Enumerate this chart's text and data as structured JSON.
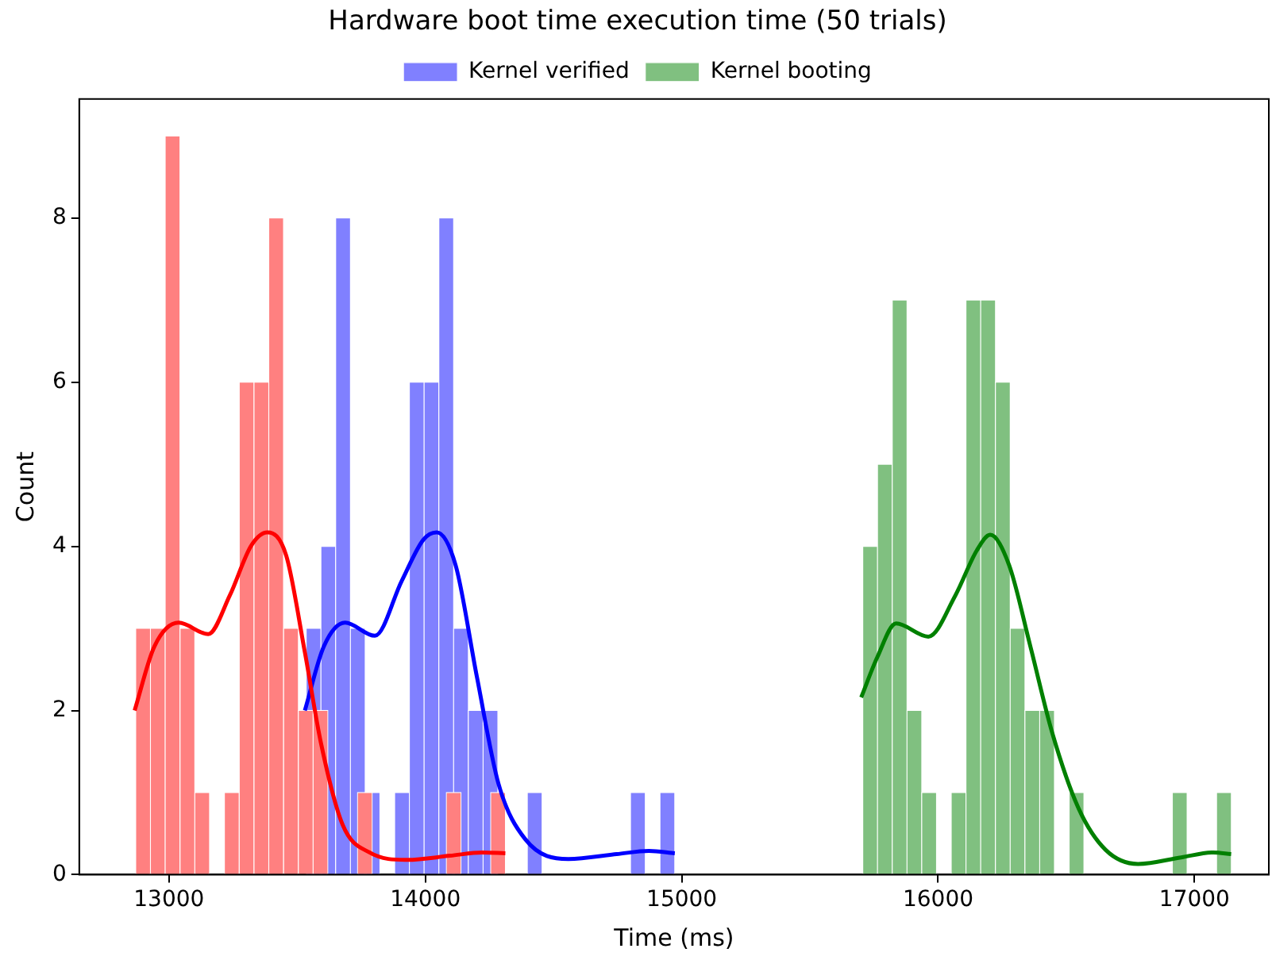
{
  "chart_data": {
    "type": "histogram",
    "title": "Hardware boot time execution time (50 trials)",
    "xlabel": "Time (ms)",
    "ylabel": "Count",
    "xlim": [
      12650,
      17290
    ],
    "xticks": [
      13000,
      14000,
      15000,
      16000,
      17000
    ],
    "ylim": [
      0,
      9.45
    ],
    "yticks": [
      0,
      2,
      4,
      6,
      8
    ],
    "grid": false,
    "legend": "top",
    "series": [
      {
        "color": "#ff8080",
        "bins": [
          12870,
          12928,
          12985,
          13043,
          13101,
          13158,
          13216,
          13274,
          13332,
          13389,
          13447,
          13505,
          13562,
          13620,
          13678,
          13735,
          13793,
          13851,
          13909,
          13966,
          14024,
          14082,
          14139,
          14197,
          14255,
          14312
        ],
        "values": [
          3,
          3,
          9,
          3,
          1,
          0,
          1,
          6,
          6,
          8,
          3,
          2,
          2,
          0,
          0,
          1,
          0,
          0,
          0,
          0,
          0,
          1,
          0,
          0,
          1
        ]
      },
      {
        "name": "Kernel verified",
        "color": "#8080ff",
        "bins": [
          13535,
          13593,
          13650,
          13708,
          13765,
          13823,
          13880,
          13938,
          13995,
          14053,
          14110,
          14168,
          14225,
          14283,
          14340,
          14398,
          14455,
          14513,
          14570,
          14628,
          14685,
          14743,
          14800,
          14858,
          14915,
          14973
        ],
        "values": [
          3,
          4,
          8,
          3,
          1,
          0,
          1,
          6,
          6,
          8,
          3,
          2,
          2,
          0,
          0,
          1,
          0,
          0,
          0,
          0,
          0,
          0,
          1,
          0,
          1
        ]
      },
      {
        "name": "Kernel booting",
        "color": "#80c080",
        "bins": [
          15706,
          15764,
          15821,
          15879,
          15936,
          15994,
          16051,
          16109,
          16166,
          16224,
          16281,
          16339,
          16396,
          16454,
          16511,
          16569,
          16626,
          16684,
          16741,
          16799,
          16856,
          16914,
          16971,
          17029,
          17086,
          17144
        ],
        "values": [
          4,
          5,
          7,
          2,
          1,
          0,
          1,
          7,
          7,
          6,
          3,
          2,
          2,
          0,
          1,
          0,
          0,
          0,
          0,
          0,
          0,
          1,
          0,
          0,
          1
        ]
      },
      {
        "type": "line",
        "color": "#ff0000",
        "x": [
          12866,
          12943,
          13038,
          13153,
          13237,
          13321,
          13384,
          13457,
          13530,
          13593,
          13677,
          13782,
          13929,
          14096,
          14222,
          14312
        ],
        "values": [
          2.0,
          2.78,
          3.07,
          2.93,
          3.4,
          4.01,
          4.17,
          3.89,
          2.71,
          1.6,
          0.61,
          0.27,
          0.18,
          0.23,
          0.27,
          0.26
        ]
      },
      {
        "type": "line",
        "color": "#0000ff",
        "x": [
          13530,
          13604,
          13687,
          13803,
          13908,
          13992,
          14044,
          14118,
          14201,
          14285,
          14390,
          14558,
          14746,
          14872,
          14973
        ],
        "values": [
          2.0,
          2.78,
          3.07,
          2.91,
          3.58,
          4.08,
          4.17,
          3.77,
          2.41,
          1.11,
          0.43,
          0.19,
          0.25,
          0.29,
          0.26
        ]
      },
      {
        "type": "line",
        "color": "#008000",
        "x": [
          15700,
          15763,
          15836,
          15962,
          16067,
          16151,
          16203,
          16277,
          16360,
          16445,
          16549,
          16654,
          16780,
          16948,
          17073,
          17143
        ],
        "values": [
          2.16,
          2.65,
          3.06,
          2.9,
          3.4,
          3.95,
          4.14,
          3.77,
          2.78,
          1.73,
          0.8,
          0.3,
          0.13,
          0.21,
          0.27,
          0.25
        ]
      }
    ]
  }
}
